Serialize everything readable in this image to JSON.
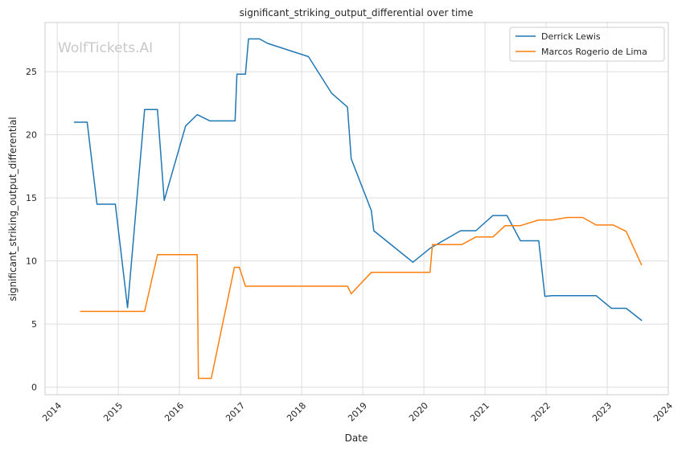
{
  "chart_data": {
    "type": "line",
    "title": "significant_striking_output_differential over time",
    "xlabel": "Date",
    "ylabel": "significant_striking_output_differential",
    "watermark": "WolfTickets.AI",
    "xlim": [
      2013.8,
      2024.0
    ],
    "ylim": [
      -0.6,
      28.9
    ],
    "x_ticks": [
      2014,
      2015,
      2016,
      2017,
      2018,
      2019,
      2020,
      2021,
      2022,
      2023,
      2024
    ],
    "x_tick_labels": [
      "2014",
      "2015",
      "2016",
      "2017",
      "2018",
      "2019",
      "2020",
      "2021",
      "2022",
      "2023",
      "2024"
    ],
    "y_ticks": [
      0,
      5,
      10,
      15,
      20,
      25
    ],
    "y_tick_labels": [
      "0",
      "5",
      "10",
      "15",
      "20",
      "25"
    ],
    "grid": true,
    "legend_position": "top-right",
    "series": [
      {
        "name": "Derrick Lewis",
        "color": "#1f77b4",
        "points": [
          [
            2014.28,
            21.0
          ],
          [
            2014.49,
            21.0
          ],
          [
            2014.65,
            14.5
          ],
          [
            2014.95,
            14.5
          ],
          [
            2015.15,
            6.3
          ],
          [
            2015.43,
            22.0
          ],
          [
            2015.64,
            22.0
          ],
          [
            2015.75,
            14.8
          ],
          [
            2016.1,
            20.7
          ],
          [
            2016.29,
            21.6
          ],
          [
            2016.5,
            21.1
          ],
          [
            2016.91,
            21.1
          ],
          [
            2016.94,
            24.8
          ],
          [
            2017.08,
            24.8
          ],
          [
            2017.13,
            27.6
          ],
          [
            2017.31,
            27.6
          ],
          [
            2017.44,
            27.25
          ],
          [
            2018.11,
            26.2
          ],
          [
            2018.49,
            23.3
          ],
          [
            2018.75,
            22.2
          ],
          [
            2018.81,
            18.1
          ],
          [
            2019.14,
            14.0
          ],
          [
            2019.18,
            12.4
          ],
          [
            2019.82,
            9.9
          ],
          [
            2020.1,
            11.0
          ],
          [
            2020.6,
            12.4
          ],
          [
            2020.85,
            12.4
          ],
          [
            2021.13,
            13.6
          ],
          [
            2021.36,
            13.6
          ],
          [
            2021.58,
            11.6
          ],
          [
            2021.88,
            11.6
          ],
          [
            2021.98,
            7.2
          ],
          [
            2022.1,
            7.25
          ],
          [
            2022.82,
            7.25
          ],
          [
            2023.07,
            6.25
          ],
          [
            2023.31,
            6.25
          ],
          [
            2023.56,
            5.3
          ]
        ]
      },
      {
        "name": "Marcos Rogerio de Lima",
        "color": "#ff7f0e",
        "points": [
          [
            2014.38,
            6.0
          ],
          [
            2015.43,
            6.0
          ],
          [
            2015.64,
            10.5
          ],
          [
            2016.29,
            10.5
          ],
          [
            2016.31,
            0.7
          ],
          [
            2016.52,
            0.7
          ],
          [
            2016.9,
            9.5
          ],
          [
            2016.98,
            9.5
          ],
          [
            2017.08,
            8.0
          ],
          [
            2018.75,
            8.0
          ],
          [
            2018.81,
            7.4
          ],
          [
            2019.14,
            9.1
          ],
          [
            2020.1,
            9.1
          ],
          [
            2020.14,
            11.3
          ],
          [
            2020.62,
            11.3
          ],
          [
            2020.85,
            11.9
          ],
          [
            2021.13,
            11.9
          ],
          [
            2021.33,
            12.8
          ],
          [
            2021.58,
            12.8
          ],
          [
            2021.88,
            13.25
          ],
          [
            2022.1,
            13.25
          ],
          [
            2022.35,
            13.45
          ],
          [
            2022.6,
            13.45
          ],
          [
            2022.82,
            12.85
          ],
          [
            2023.1,
            12.85
          ],
          [
            2023.31,
            12.35
          ],
          [
            2023.56,
            9.7
          ]
        ]
      }
    ]
  }
}
